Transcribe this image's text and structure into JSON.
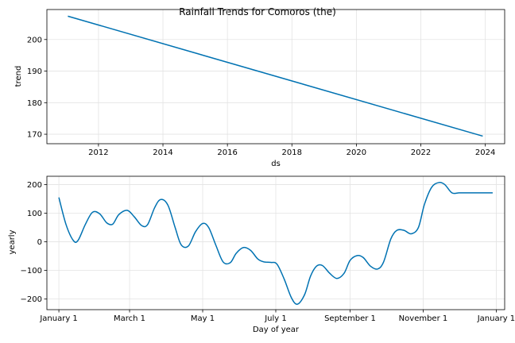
{
  "chart_data": [
    {
      "type": "line",
      "title": "Rainfall Trends for Comoros (the)",
      "xlabel": "ds",
      "ylabel": "trend",
      "x": [
        2011.05,
        2023.92
      ],
      "y": [
        207.4,
        169.4
      ],
      "xlim": [
        2010.4,
        2024.6
      ],
      "ylim": [
        167.0,
        209.5
      ],
      "xticks": [
        2012,
        2014,
        2016,
        2018,
        2020,
        2022,
        2024
      ],
      "xtick_labels": [
        "2012",
        "2014",
        "2016",
        "2018",
        "2020",
        "2022",
        "2024"
      ],
      "yticks": [
        170,
        180,
        190,
        200
      ],
      "ytick_labels": [
        "170",
        "180",
        "190",
        "200"
      ],
      "grid": true,
      "color": "#0072b2"
    },
    {
      "type": "line",
      "xlabel": "Day of year",
      "ylabel": "yearly",
      "x": [
        0,
        6,
        12,
        16,
        22,
        28,
        34,
        40,
        45,
        50,
        57,
        63,
        69,
        74,
        80,
        85,
        91,
        97,
        102,
        108,
        114,
        120,
        125,
        131,
        137,
        143,
        148,
        154,
        160,
        166,
        171,
        177,
        182,
        188,
        194,
        199,
        205,
        210,
        215,
        220,
        226,
        232,
        238,
        243,
        249,
        254,
        260,
        266,
        271,
        277,
        282,
        288,
        294,
        300,
        305,
        311,
        317,
        322,
        328,
        334,
        340,
        346,
        351,
        357,
        362
      ],
      "y": [
        155,
        60,
        5,
        5,
        60,
        103,
        98,
        66,
        62,
        95,
        110,
        87,
        57,
        60,
        120,
        148,
        128,
        50,
        -10,
        -15,
        35,
        64,
        50,
        -12,
        -70,
        -73,
        -40,
        -20,
        -30,
        -60,
        -70,
        -72,
        -78,
        -130,
        -195,
        -218,
        -185,
        -120,
        -85,
        -83,
        -110,
        -128,
        -110,
        -65,
        -48,
        -55,
        -85,
        -95,
        -70,
        10,
        40,
        40,
        28,
        50,
        130,
        190,
        207,
        200,
        171,
        171,
        171,
        171,
        171,
        171,
        171
      ],
      "xlim": [
        -10,
        372
      ],
      "ylim": [
        -237,
        229
      ],
      "xticks": [
        0,
        59,
        120,
        181,
        243,
        304,
        365
      ],
      "xtick_labels": [
        "January 1",
        "March 1",
        "May 1",
        "July 1",
        "September 1",
        "November 1",
        "January 1"
      ],
      "yticks": [
        -200,
        -100,
        0,
        100,
        200
      ],
      "ytick_labels": [
        "−200",
        "−100",
        "0",
        "100",
        "200"
      ],
      "grid": true,
      "color": "#0072b2"
    }
  ]
}
